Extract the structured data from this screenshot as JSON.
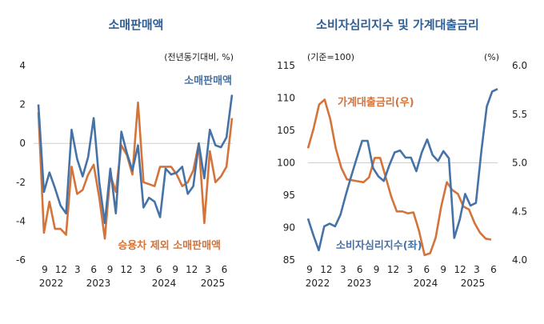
{
  "colors": {
    "blue": "#4572a7",
    "orange": "#d4733a",
    "title": "#2f5f97"
  },
  "chart_data": [
    {
      "type": "line",
      "title": "소매판매액",
      "unit": "(전년동기대비, %)",
      "ylim": [
        -6,
        4
      ],
      "yticks": [
        "4",
        "2",
        "0",
        "-2",
        "-4",
        "-6"
      ],
      "x_tick_labels": [
        "9",
        "12",
        "3",
        "6",
        "9",
        "12",
        "3",
        "6",
        "9",
        "12",
        "3",
        "6"
      ],
      "years": [
        "2022",
        "2023",
        "2024",
        "2025"
      ],
      "zero_line": 0,
      "series": [
        {
          "name": "소매판매액",
          "color": "#4572a7",
          "values": [
            2.0,
            -2.5,
            -1.5,
            -2.3,
            -3.2,
            -3.6,
            0.7,
            -0.8,
            -1.7,
            -0.7,
            1.3,
            -2.0,
            -4.1,
            -1.3,
            -3.6,
            0.6,
            -0.5,
            -1.4,
            -0.1,
            -3.3,
            -2.8,
            -3.0,
            -3.8,
            -1.3,
            -1.6,
            -1.5,
            -1.2,
            -2.6,
            -2.2,
            0.0,
            -1.8,
            0.7,
            -0.1,
            -0.2,
            0.3,
            2.5
          ]
        },
        {
          "name": "승용차 제외 소매판매액",
          "color": "#d4733a",
          "values": [
            1.6,
            -4.6,
            -3.0,
            -4.4,
            -4.4,
            -4.7,
            -1.2,
            -2.6,
            -2.4,
            -1.6,
            -1.1,
            -2.8,
            -4.9,
            -1.6,
            -2.5,
            -0.1,
            -0.6,
            -1.6,
            2.1,
            -2.0,
            -2.1,
            -2.2,
            -1.2,
            -1.2,
            -1.2,
            -1.6,
            -2.2,
            -2.0,
            -1.4,
            0.0,
            -4.1,
            -0.4,
            -2.0,
            -1.7,
            -1.2,
            1.3
          ]
        }
      ]
    },
    {
      "type": "line",
      "title": "소비자심리지수 및 가계대출금리",
      "unit_left": "(기준=100)",
      "unit_right": "(%)",
      "ylim_left": [
        85,
        115
      ],
      "ylim_right": [
        4.0,
        6.0
      ],
      "yticks_left": [
        "115",
        "110",
        "105",
        "100",
        "95",
        "90",
        "85"
      ],
      "yticks_right": [
        "6.0",
        "5.5",
        "5.0",
        "4.5",
        "4.0"
      ],
      "x_tick_labels": [
        "9",
        "12",
        "3",
        "6",
        "9",
        "12",
        "3",
        "6",
        "9",
        "12",
        "3",
        "6"
      ],
      "years": [
        "2022",
        "2023",
        "2024",
        "2025"
      ],
      "ref_line_left": 100,
      "series": [
        {
          "name": "소비자심리지수(좌)",
          "axis": "left",
          "color": "#4572a7",
          "values": [
            91.4,
            88.8,
            86.5,
            90.2,
            90.6,
            90.2,
            92.0,
            95.1,
            98.0,
            100.7,
            103.4,
            103.4,
            99.2,
            97.9,
            97.2,
            99.6,
            101.6,
            101.9,
            100.8,
            100.8,
            98.7,
            101.6,
            103.6,
            101.2,
            100.3,
            101.8,
            100.7,
            88.4,
            91.2,
            95.2,
            93.4,
            93.8,
            101.8,
            108.7,
            111.0,
            111.4
          ]
        },
        {
          "name": "가계대출금리(우)",
          "axis": "right",
          "color": "#d4733a",
          "values": [
            5.15,
            5.35,
            5.6,
            5.65,
            5.45,
            5.15,
            4.95,
            4.83,
            4.82,
            4.81,
            4.8,
            4.85,
            5.05,
            5.05,
            4.85,
            4.65,
            4.5,
            4.5,
            4.48,
            4.49,
            4.3,
            4.05,
            4.07,
            4.23,
            4.55,
            4.8,
            4.72,
            4.68,
            4.55,
            4.52,
            4.38,
            4.28,
            4.22,
            4.21
          ]
        }
      ]
    }
  ]
}
